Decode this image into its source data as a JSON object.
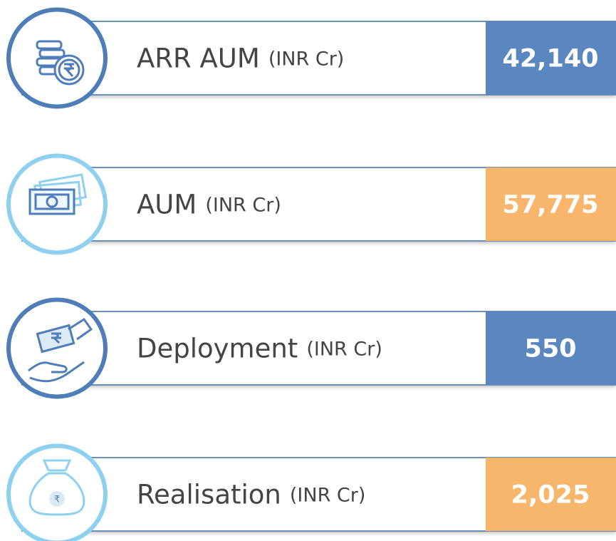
{
  "items": [
    {
      "label": "ARR AUM",
      "unit": "(INR Cr)",
      "value": "42,140",
      "box_color": "#5a87bf",
      "ring_color": "#4f7db8"
    },
    {
      "label": "AUM",
      "unit": "(INR Cr)",
      "value": "57,775",
      "box_color": "#f8b56c",
      "ring_color": "#8fd0ef"
    },
    {
      "label": "Deployment",
      "unit": "(INR Cr)",
      "value": "550",
      "box_color": "#5a87bf",
      "ring_color": "#4f7db8"
    },
    {
      "label": "Realisation",
      "unit": "(INR Cr)",
      "value": "2,025",
      "box_color": "#f8b56c",
      "ring_color": "#8fd0ef"
    }
  ]
}
